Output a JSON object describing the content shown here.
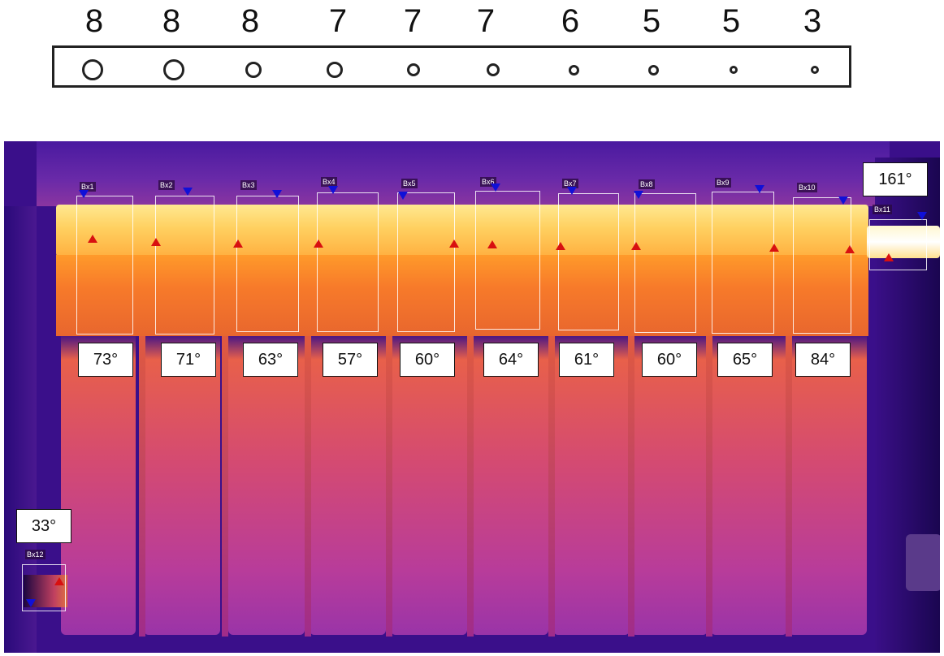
{
  "holes": {
    "numbers": [
      "8",
      "8",
      "8",
      "7",
      "7",
      "7",
      "6",
      "5",
      "5",
      "3"
    ]
  },
  "thermal": {
    "boxes": [
      {
        "label": "Bx1",
        "temp": "73°"
      },
      {
        "label": "Bx2",
        "temp": "71°"
      },
      {
        "label": "Bx3",
        "temp": "63°"
      },
      {
        "label": "Bx4",
        "temp": "57°"
      },
      {
        "label": "Bx5",
        "temp": "60°"
      },
      {
        "label": "Bx6",
        "temp": "64°"
      },
      {
        "label": "Bx7",
        "temp": "61°"
      },
      {
        "label": "Bx8",
        "temp": "60°"
      },
      {
        "label": "Bx9",
        "temp": "65°"
      },
      {
        "label": "Bx10",
        "temp": "84°"
      }
    ],
    "inlet": {
      "label": "Bx11",
      "temp": "161°"
    },
    "outlet": {
      "label": "Bx12",
      "temp": "33°"
    }
  },
  "colors": {
    "hot": "#ffe890",
    "warm": "#f77a2a",
    "cool": "#a02c8a",
    "background": "#3a0f8a",
    "max_marker": "#d81010",
    "min_marker": "#1010d8"
  }
}
